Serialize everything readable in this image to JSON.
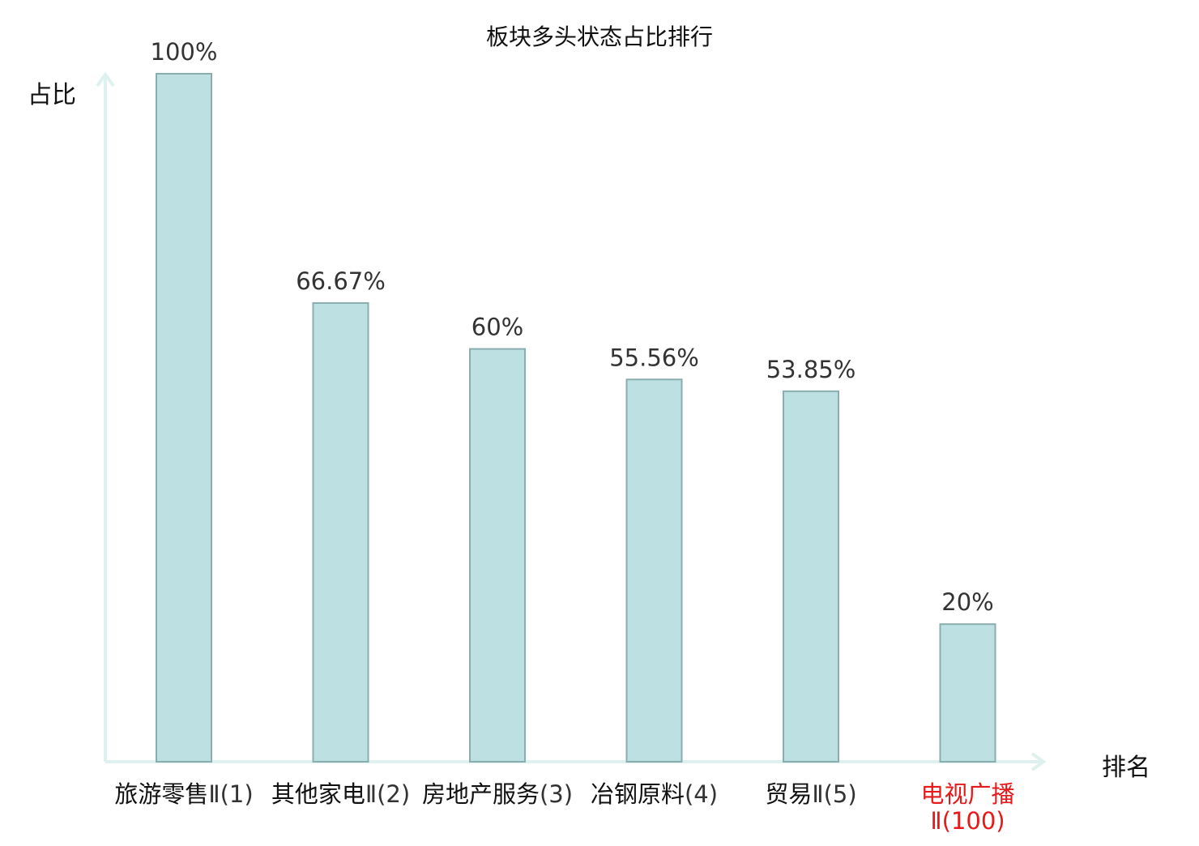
{
  "chart_data": {
    "type": "bar",
    "title": "板块多头状态占比排行",
    "ylabel": "占比",
    "xlabel": "排名",
    "ylim": [
      0,
      100
    ],
    "grid": false,
    "categories": [
      {
        "name": "旅游零售",
        "suffix": "Ⅱ(1)"
      },
      {
        "name": "其他家电",
        "suffix": "Ⅱ(2)"
      },
      {
        "name": "房地产服务",
        "suffix": "(3)"
      },
      {
        "name": "冶钢原料",
        "suffix": "(4)"
      },
      {
        "name": "贸易",
        "suffix": "Ⅱ(5)"
      },
      {
        "name": "电视广播",
        "suffix": "Ⅱ(100)"
      }
    ],
    "values": [
      100,
      66.67,
      60,
      55.56,
      53.85,
      20
    ],
    "value_labels": [
      "100%",
      "66.67%",
      "60%",
      "55.56%",
      "53.85%",
      "20%"
    ],
    "highlight_index": 5,
    "colors": {
      "bar_fill": "#bde0e3",
      "bar_stroke": "#8aaeb0",
      "axis": "#dff1ee",
      "highlight": "#e8191b",
      "label_text": "#333333"
    }
  }
}
